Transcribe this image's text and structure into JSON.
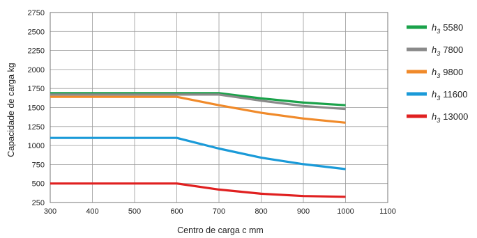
{
  "chart_data": {
    "type": "line",
    "xlabel": "Centro de carga c mm",
    "ylabel": "Capacidade de carga kg",
    "xlim": [
      300,
      1100
    ],
    "ylim": [
      250,
      2750
    ],
    "x_ticks": [
      300,
      400,
      500,
      600,
      700,
      800,
      900,
      1000,
      1100
    ],
    "y_ticks": [
      250,
      500,
      750,
      1000,
      1250,
      1500,
      1750,
      2000,
      2250,
      2500,
      2750
    ],
    "grid": true,
    "legend_position": "right",
    "legend_symbol": "h",
    "legend_subscript": "3",
    "series": [
      {
        "name": "5580",
        "color": "#1aa24a",
        "x": [
          300,
          600,
          700,
          800,
          900,
          1000
        ],
        "y": [
          1690,
          1690,
          1690,
          1620,
          1565,
          1530
        ]
      },
      {
        "name": "7800",
        "color": "#8a8a8a",
        "x": [
          300,
          600,
          700,
          800,
          900,
          1000
        ],
        "y": [
          1670,
          1670,
          1670,
          1590,
          1520,
          1480
        ]
      },
      {
        "name": "9800",
        "color": "#f08a2a",
        "x": [
          300,
          600,
          700,
          800,
          900,
          1000
        ],
        "y": [
          1640,
          1640,
          1530,
          1430,
          1355,
          1300
        ]
      },
      {
        "name": "11600",
        "color": "#1a9ad8",
        "x": [
          300,
          600,
          700,
          800,
          900,
          1000
        ],
        "y": [
          1100,
          1100,
          960,
          840,
          755,
          690
        ]
      },
      {
        "name": "13000",
        "color": "#e02020",
        "x": [
          300,
          600,
          700,
          800,
          900,
          1000
        ],
        "y": [
          500,
          500,
          420,
          365,
          335,
          325
        ]
      }
    ]
  }
}
